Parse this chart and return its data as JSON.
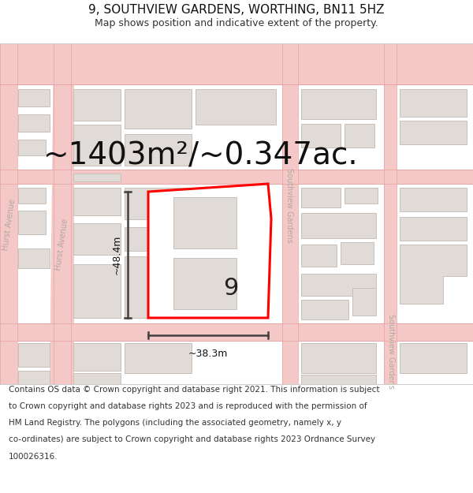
{
  "title": "9, SOUTHVIEW GARDENS, WORTHING, BN11 5HZ",
  "subtitle": "Map shows position and indicative extent of the property.",
  "area_text": "~1403m²/~0.347ac.",
  "width_label": "~38.3m",
  "height_label": "~48.4m",
  "property_number": "9",
  "footer_text": "Contains OS data © Crown copyright and database right 2021. This information is subject to Crown copyright and database rights 2023 and is reproduced with the permission of HM Land Registry. The polygons (including the associated geometry, namely x, y co-ordinates) are subject to Crown copyright and database rights 2023 Ordnance Survey 100026316.",
  "bg_color": "#ffffff",
  "map_bg": "#ffffff",
  "road_color": "#f5c8c8",
  "road_edge_color": "#e8a0a0",
  "building_fill": "#e0dbd6",
  "building_edge": "#c8c0b8",
  "highlight_fill": "#ffffff",
  "highlight_edge": "#ff0000",
  "measure_color": "#404040",
  "street_label_color": "#b0a8a0",
  "title_fontsize": 11,
  "subtitle_fontsize": 9,
  "area_fontsize": 28,
  "label_fontsize": 9,
  "street_fontsize": 7,
  "footer_fontsize": 7.5
}
